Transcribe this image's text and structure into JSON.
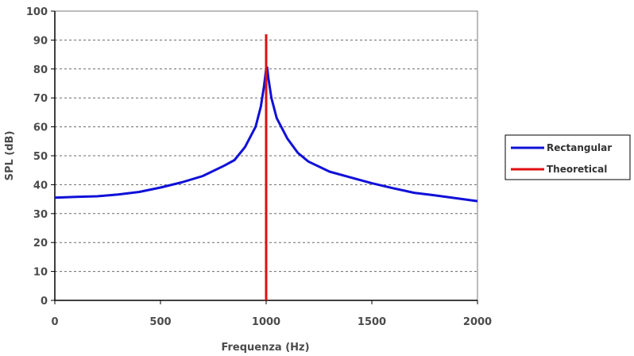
{
  "chart_data": {
    "type": "line",
    "title": "",
    "xlabel": "Frequenza (Hz)",
    "ylabel": "SPL (dB)",
    "xlim": [
      0,
      2000
    ],
    "ylim": [
      0,
      100
    ],
    "x_ticks": [
      "0",
      "500",
      "1000",
      "1500",
      "2000"
    ],
    "y_ticks": [
      "0",
      "10",
      "20",
      "30",
      "40",
      "50",
      "60",
      "70",
      "80",
      "90",
      "100"
    ],
    "grid": "horizontal dashed",
    "legend_position": "right",
    "series": [
      {
        "name": "Rectangular",
        "color": "#1010d8",
        "points": [
          [
            0,
            35.5
          ],
          [
            100,
            35.8
          ],
          [
            200,
            36
          ],
          [
            300,
            36.6
          ],
          [
            400,
            37.5
          ],
          [
            500,
            39
          ],
          [
            600,
            40.8
          ],
          [
            700,
            43
          ],
          [
            800,
            46.5
          ],
          [
            850,
            48.5
          ],
          [
            900,
            53
          ],
          [
            950,
            60
          ],
          [
            975,
            67
          ],
          [
            990,
            74
          ],
          [
            1000,
            80
          ],
          [
            1005,
            80.5
          ],
          [
            1010,
            77
          ],
          [
            1025,
            70
          ],
          [
            1050,
            63
          ],
          [
            1100,
            56
          ],
          [
            1150,
            51
          ],
          [
            1200,
            48
          ],
          [
            1300,
            44.5
          ],
          [
            1400,
            42.5
          ],
          [
            1500,
            40.5
          ],
          [
            1600,
            38.8
          ],
          [
            1700,
            37.2
          ],
          [
            1800,
            36.3
          ],
          [
            1900,
            35.3
          ],
          [
            2000,
            34.3
          ]
        ]
      },
      {
        "name": "Theoretical",
        "color": "#e01010",
        "points": [
          [
            1000,
            0
          ],
          [
            1000,
            92
          ]
        ]
      }
    ]
  }
}
